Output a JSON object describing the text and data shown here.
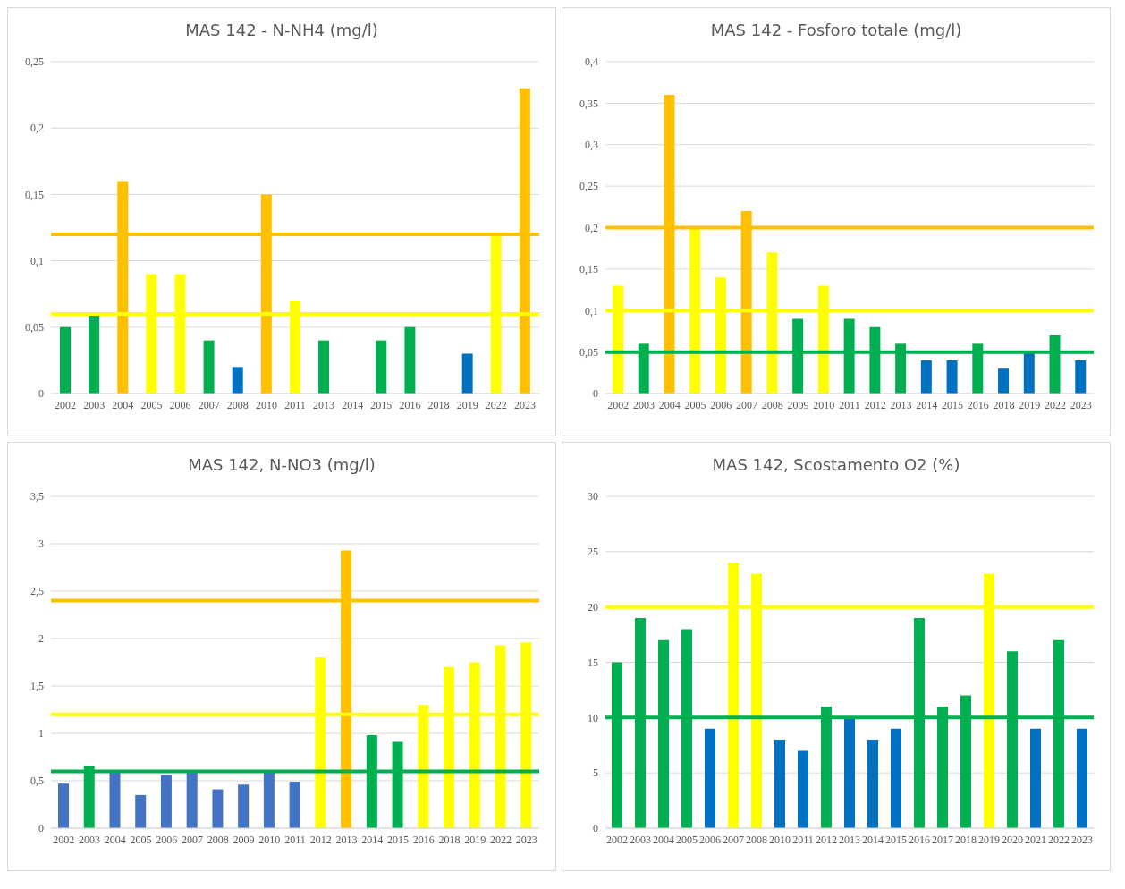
{
  "chart_data": [
    {
      "type": "bar",
      "title": "MAS 142 - N-NH4 (mg/l)",
      "categories": [
        "2002",
        "2003",
        "2004",
        "2005",
        "2006",
        "2007",
        "2008",
        "2010",
        "2011",
        "2013",
        "2014",
        "2015",
        "2016",
        "2018",
        "2019",
        "2022",
        "2023"
      ],
      "values": [
        0.05,
        0.06,
        0.16,
        0.09,
        0.09,
        0.04,
        0.02,
        0.15,
        0.07,
        0.04,
        0,
        0.04,
        0.05,
        0,
        0.03,
        0.12,
        0.23
      ],
      "colors": [
        "#00b050",
        "#00b050",
        "#ffc000",
        "#ffff00",
        "#ffff00",
        "#00b050",
        "#0070c0",
        "#ffc000",
        "#ffff00",
        "#00b050",
        "#00b050",
        "#00b050",
        "#00b050",
        "#00b050",
        "#0070c0",
        "#ffff00",
        "#ffc000"
      ],
      "ylim": [
        0,
        0.25
      ],
      "yticks": [
        0,
        {
          "value": 0.05,
          "label": "0,05"
        },
        {
          "value": 0.1,
          "label": "0,1"
        },
        {
          "value": 0.15,
          "label": "0,15"
        },
        {
          "value": 0.2,
          "label": "0,2"
        },
        {
          "value": 0.25,
          "label": "0,25"
        }
      ],
      "grid": "y",
      "ref_lines": [
        {
          "axis": "y",
          "value": 0.12,
          "color": "#ffc000"
        },
        {
          "axis": "y",
          "value": 0.06,
          "color": "#ffff00"
        }
      ]
    },
    {
      "type": "bar",
      "title": "MAS 142 - Fosforo totale (mg/l)",
      "categories": [
        "2002",
        "2003",
        "2004",
        "2005",
        "2006",
        "2007",
        "2008",
        "2009",
        "2010",
        "2011",
        "2012",
        "2013",
        "2014",
        "2015",
        "2016",
        "2018",
        "2019",
        "2022",
        "2023"
      ],
      "values": [
        0.13,
        0.06,
        0.36,
        0.2,
        0.14,
        0.22,
        0.17,
        0.09,
        0.13,
        0.09,
        0.08,
        0.06,
        0.04,
        0.04,
        0.06,
        0.03,
        0.05,
        0.07,
        0.04
      ],
      "colors": [
        "#ffff00",
        "#00b050",
        "#ffc000",
        "#ffff00",
        "#ffff00",
        "#ffc000",
        "#ffff00",
        "#00b050",
        "#ffff00",
        "#00b050",
        "#00b050",
        "#00b050",
        "#0070c0",
        "#0070c0",
        "#00b050",
        "#0070c0",
        "#0070c0",
        "#00b050",
        "#0070c0"
      ],
      "ylim": [
        0,
        0.4
      ],
      "yticks": [
        0,
        {
          "value": 0.05,
          "label": "0,05"
        },
        {
          "value": 0.1,
          "label": "0,1"
        },
        {
          "value": 0.15,
          "label": "0,15"
        },
        {
          "value": 0.2,
          "label": "0,2"
        },
        {
          "value": 0.25,
          "label": "0,25"
        },
        {
          "value": 0.3,
          "label": "0,3"
        },
        {
          "value": 0.35,
          "label": "0,35"
        },
        {
          "value": 0.4,
          "label": "0,4"
        }
      ],
      "grid": "y",
      "ref_lines": [
        {
          "axis": "y",
          "value": 0.2,
          "color": "#ffc000"
        },
        {
          "axis": "y",
          "value": 0.1,
          "color": "#ffff00"
        },
        {
          "axis": "y",
          "value": 0.05,
          "color": "#00b050"
        }
      ]
    },
    {
      "type": "bar",
      "title": "MAS 142, N-NO3 (mg/l)",
      "categories": [
        "2002",
        "2003",
        "2004",
        "2005",
        "2006",
        "2007",
        "2008",
        "2009",
        "2010",
        "2011",
        "2012",
        "2013",
        "2014",
        "2015",
        "2016",
        "2018",
        "2019",
        "2022",
        "2023"
      ],
      "values": [
        0.47,
        0.66,
        0.6,
        0.35,
        0.56,
        0.6,
        0.41,
        0.46,
        0.6,
        0.49,
        1.8,
        2.93,
        0.98,
        0.91,
        1.3,
        1.7,
        1.75,
        1.93,
        1.96
      ],
      "colors": [
        "#4472c4",
        "#00b050",
        "#4472c4",
        "#4472c4",
        "#4472c4",
        "#4472c4",
        "#4472c4",
        "#4472c4",
        "#4472c4",
        "#4472c4",
        "#ffff00",
        "#ffc000",
        "#00b050",
        "#00b050",
        "#ffff00",
        "#ffff00",
        "#ffff00",
        "#ffff00",
        "#ffff00"
      ],
      "ylim": [
        0,
        3.5
      ],
      "yticks": [
        0,
        {
          "value": 0.5,
          "label": "0,5"
        },
        1,
        {
          "value": 1.5,
          "label": "1,5"
        },
        2,
        {
          "value": 2.5,
          "label": "2,5"
        },
        3,
        {
          "value": 3.5,
          "label": "3,5"
        }
      ],
      "grid": "y",
      "ref_lines": [
        {
          "axis": "y",
          "value": 2.4,
          "color": "#ffc000"
        },
        {
          "axis": "y",
          "value": 1.2,
          "color": "#ffff00"
        },
        {
          "axis": "y",
          "value": 0.6,
          "color": "#00b050"
        }
      ]
    },
    {
      "type": "bar",
      "title": "MAS 142, Scostamento O2 (%)",
      "categories": [
        "2002",
        "2003",
        "2004",
        "2005",
        "2006",
        "2007",
        "2008",
        "2010",
        "2011",
        "2012",
        "2013",
        "2014",
        "2015",
        "2016",
        "2017",
        "2018",
        "2019",
        "2020",
        "2021",
        "2022",
        "2023"
      ],
      "values": [
        15,
        19,
        17,
        18,
        9,
        24,
        23,
        8,
        7,
        11,
        10,
        8,
        9,
        19,
        11,
        12,
        23,
        16,
        9,
        17,
        9
      ],
      "colors": [
        "#00b050",
        "#00b050",
        "#00b050",
        "#00b050",
        "#0070c0",
        "#ffff00",
        "#ffff00",
        "#0070c0",
        "#0070c0",
        "#00b050",
        "#0070c0",
        "#0070c0",
        "#0070c0",
        "#00b050",
        "#00b050",
        "#00b050",
        "#ffff00",
        "#00b050",
        "#0070c0",
        "#00b050",
        "#0070c0"
      ],
      "ylim": [
        0,
        30
      ],
      "yticks": [
        0,
        5,
        10,
        15,
        20,
        25,
        30
      ],
      "grid": "y",
      "ref_lines": [
        {
          "axis": "y",
          "value": 20,
          "color": "#ffff00"
        },
        {
          "axis": "y",
          "value": 10,
          "color": "#00b050"
        }
      ]
    }
  ]
}
